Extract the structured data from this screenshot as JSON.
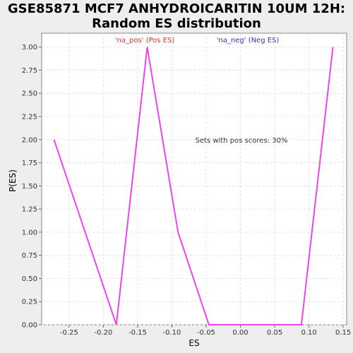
{
  "chart_data": {
    "type": "line",
    "title_line1": "GSE85871 MCF7 ANHYDROICARITIN 10UM 12H:",
    "title_line2": "Random ES distribution",
    "xlabel": "ES",
    "ylabel": "P(ES)",
    "xlim": [
      -0.29,
      0.155
    ],
    "ylim": [
      0,
      3.15
    ],
    "xticks": [
      -0.25,
      -0.2,
      -0.15,
      -0.1,
      -0.05,
      0.0,
      0.05,
      0.1,
      0.15
    ],
    "xtick_labels": [
      "-0.25",
      "-0.20",
      "-0.15",
      "-0.10",
      "-0.05",
      "0.00",
      "0.05",
      "0.10",
      "0.15"
    ],
    "yticks": [
      0,
      0.25,
      0.5,
      0.75,
      1.0,
      1.25,
      1.5,
      1.75,
      2.0,
      2.25,
      2.5,
      2.75,
      3.0
    ],
    "ytick_labels": [
      "0.00",
      "0.25",
      "0.50",
      "0.75",
      "1.00",
      "1.25",
      "1.50",
      "1.75",
      "2.00",
      "2.25",
      "2.50",
      "2.75",
      "3.00"
    ],
    "grid": true,
    "series": [
      {
        "color": "#ee44ee",
        "x": [
          -0.272,
          -0.181,
          -0.136,
          -0.091,
          -0.046,
          0.089,
          0.135
        ],
        "y": [
          2.0,
          0.0,
          3.0,
          1.0,
          0.0,
          0.0,
          3.0
        ]
      }
    ],
    "legend": [
      {
        "label": "'na_pos' (Pos ES)",
        "color": "#dd3333"
      },
      {
        "label": "'na_neg' (Neg ES)",
        "color": "#3333cc"
      }
    ],
    "annotation": "Sets with pos scores: 30%"
  }
}
